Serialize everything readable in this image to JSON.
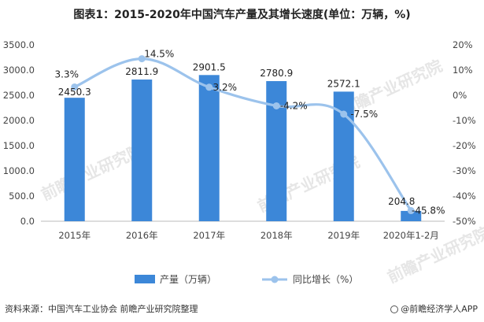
{
  "title": "图表1：2015-2020年中国汽车产量及其增长速度(单位：万辆，%)",
  "source": "资料来源：中国汽车工业协会 前瞻产业研究院整理",
  "brand": "@前瞻经济学人APP",
  "watermark": "前瞻产业研究院",
  "colors": {
    "bar": "#3c87d8",
    "line": "#9cc3ec",
    "axis": "#bbbbbb",
    "text": "#444444"
  },
  "chart_data": {
    "type": "bar+line",
    "categories": [
      "2015年",
      "2016年",
      "2017年",
      "2018年",
      "2019年",
      "2020年1-2月"
    ],
    "series": [
      {
        "name": "产量（万辆）",
        "type": "bar",
        "axis": "left",
        "values": [
          2450.3,
          2811.9,
          2901.5,
          2780.9,
          2572.1,
          204.8
        ],
        "labels": [
          "2450.3",
          "2811.9",
          "2901.5",
          "2780.9",
          "2572.1",
          "204.8"
        ]
      },
      {
        "name": "同比增长（%）",
        "type": "line",
        "axis": "right",
        "values": [
          3.3,
          14.5,
          3.2,
          -4.2,
          -7.5,
          -45.8
        ],
        "labels": [
          "3.3%",
          "14.5%",
          "3.2%",
          "-4.2%",
          "-7.5%",
          "-45.8%"
        ]
      }
    ],
    "left_axis": {
      "min": 0,
      "max": 3500,
      "ticks": [
        "0.0",
        "500.0",
        "1000.0",
        "1500.0",
        "2000.0",
        "2500.0",
        "3000.0",
        "3500.0"
      ]
    },
    "right_axis": {
      "min": -50,
      "max": 20,
      "ticks": [
        "-50%",
        "-40%",
        "-30%",
        "-20%",
        "-10%",
        "0%",
        "10%",
        "20%"
      ]
    },
    "legend_position": "bottom-center",
    "grid": false
  }
}
